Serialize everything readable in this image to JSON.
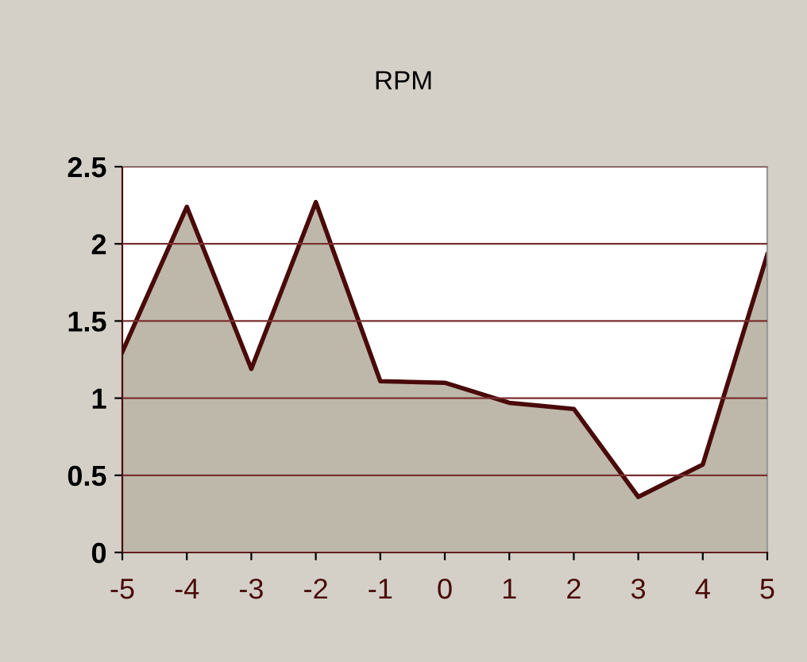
{
  "chart_data": {
    "type": "area",
    "title": "RPM",
    "x": [
      -5,
      -4,
      -3,
      -2,
      -1,
      0,
      1,
      2,
      3,
      4,
      5
    ],
    "series": [
      {
        "color": "#4a0a0a",
        "values": [
          1.3,
          2.24,
          1.19,
          2.27,
          1.11,
          1.1,
          0.97,
          0.93,
          0.36,
          0.57,
          1.93
        ]
      }
    ],
    "xlim": [
      -5,
      5
    ],
    "xticks": [
      -5,
      -4,
      -3,
      -2,
      -1,
      0,
      1,
      2,
      3,
      4,
      5
    ],
    "ylim": [
      0,
      2.5
    ],
    "yticks": [
      0,
      0.5,
      1,
      1.5,
      2,
      2.5
    ],
    "grid": "y",
    "legend": false
  }
}
